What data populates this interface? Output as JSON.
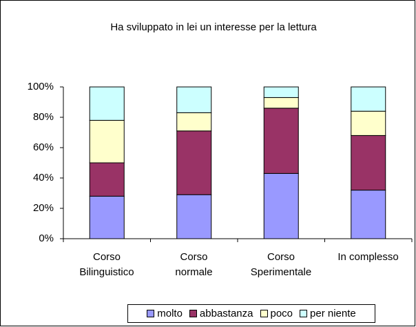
{
  "chart_data": {
    "type": "stacked_bar",
    "title": "Ha sviluppato in lei un interesse per la lettura",
    "categories": [
      "Corso\nBilinguistico",
      "Corso\nnormale",
      "Corso\nSperimentale",
      "In complesso"
    ],
    "series": [
      {
        "name": "molto",
        "color": "#9999ff",
        "values": [
          28,
          29,
          43,
          32
        ]
      },
      {
        "name": "abbastanza",
        "color": "#993366",
        "values": [
          22,
          42,
          43,
          36
        ]
      },
      {
        "name": "poco",
        "color": "#ffffcc",
        "values": [
          28,
          12,
          7,
          16
        ]
      },
      {
        "name": "per niente",
        "color": "#ccffff",
        "values": [
          22,
          17,
          7,
          16
        ]
      }
    ],
    "ylim": [
      0,
      100
    ],
    "yticks": [
      {
        "value": 0,
        "label": "0%"
      },
      {
        "value": 20,
        "label": "20%"
      },
      {
        "value": 40,
        "label": "40%"
      },
      {
        "value": 60,
        "label": "60%"
      },
      {
        "value": 80,
        "label": "80%"
      },
      {
        "value": 100,
        "label": "100%"
      }
    ],
    "grid": false,
    "legend": "bottom"
  }
}
